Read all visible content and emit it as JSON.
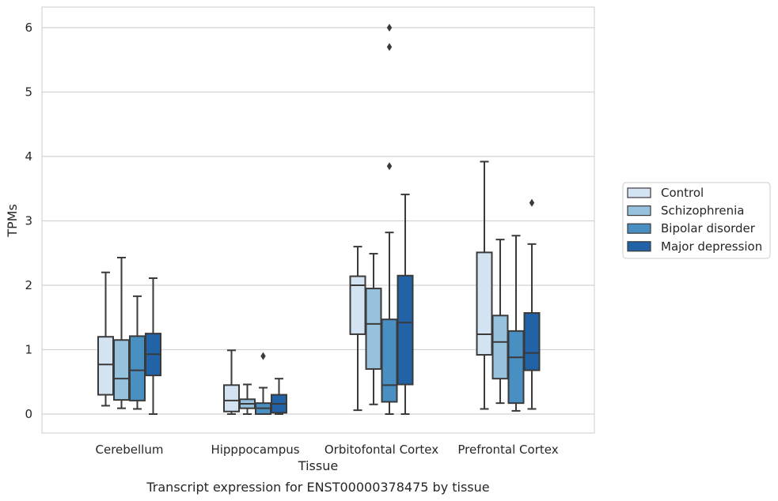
{
  "caption": "Transcript expression for ENST00000378475 by tissue",
  "colors": {
    "Control": "#d4e3f2",
    "Schizophrenia": "#97c2dd",
    "Bipolar disorder": "#4a8fc2",
    "Major depression": "#2163a6",
    "stroke": "#3a3a3a",
    "grid": "#d3d3d3",
    "frame": "#cccccc"
  },
  "chart_data": {
    "type": "box",
    "xlabel": "Tissue",
    "ylabel": "TPMs",
    "ylim": [
      -0.3,
      6.3
    ],
    "yticks": [
      0,
      1,
      2,
      3,
      4,
      5,
      6
    ],
    "ytick_labels": [
      "0",
      "1",
      "2",
      "3",
      "4",
      "5",
      "6"
    ],
    "grid": "horizontal",
    "legend_position": "right",
    "categories": [
      "Cerebellum",
      "Hipppocampus",
      "Orbitofontal Cortex",
      "Prefrontal Cortex"
    ],
    "series": [
      {
        "name": "Control",
        "boxes": [
          {
            "whislo": 0.13,
            "q1": 0.3,
            "med": 0.77,
            "q3": 1.2,
            "whishi": 2.2,
            "fliers": []
          },
          {
            "whislo": 0.0,
            "q1": 0.04,
            "med": 0.21,
            "q3": 0.45,
            "whishi": 0.99,
            "fliers": []
          },
          {
            "whislo": 0.06,
            "q1": 1.24,
            "med": 2.0,
            "q3": 2.14,
            "whishi": 2.6,
            "fliers": []
          },
          {
            "whislo": 0.08,
            "q1": 0.92,
            "med": 1.24,
            "q3": 2.51,
            "whishi": 3.92,
            "fliers": []
          }
        ]
      },
      {
        "name": "Schizophrenia",
        "boxes": [
          {
            "whislo": 0.09,
            "q1": 0.22,
            "med": 0.55,
            "q3": 1.15,
            "whishi": 2.43,
            "fliers": []
          },
          {
            "whislo": 0.0,
            "q1": 0.09,
            "med": 0.16,
            "q3": 0.23,
            "whishi": 0.46,
            "fliers": []
          },
          {
            "whislo": 0.15,
            "q1": 0.7,
            "med": 1.4,
            "q3": 1.95,
            "whishi": 2.49,
            "fliers": []
          },
          {
            "whislo": 0.17,
            "q1": 0.55,
            "med": 1.12,
            "q3": 1.53,
            "whishi": 2.71,
            "fliers": []
          }
        ]
      },
      {
        "name": "Bipolar disorder",
        "boxes": [
          {
            "whislo": 0.08,
            "q1": 0.21,
            "med": 0.68,
            "q3": 1.21,
            "whishi": 1.83,
            "fliers": []
          },
          {
            "whislo": 0.0,
            "q1": 0.0,
            "med": 0.09,
            "q3": 0.17,
            "whishi": 0.41,
            "fliers": [
              0.9
            ]
          },
          {
            "whislo": 0.0,
            "q1": 0.19,
            "med": 0.45,
            "q3": 1.47,
            "whishi": 2.82,
            "fliers": [
              3.85,
              5.7,
              6.0
            ]
          },
          {
            "whislo": 0.05,
            "q1": 0.17,
            "med": 0.88,
            "q3": 1.29,
            "whishi": 2.77,
            "fliers": []
          }
        ]
      },
      {
        "name": "Major depression",
        "boxes": [
          {
            "whislo": 0.0,
            "q1": 0.6,
            "med": 0.93,
            "q3": 1.25,
            "whishi": 2.11,
            "fliers": []
          },
          {
            "whislo": 0.0,
            "q1": 0.02,
            "med": 0.16,
            "q3": 0.3,
            "whishi": 0.55,
            "fliers": []
          },
          {
            "whislo": 0.0,
            "q1": 0.46,
            "med": 1.42,
            "q3": 2.15,
            "whishi": 3.41,
            "fliers": []
          },
          {
            "whislo": 0.08,
            "q1": 0.68,
            "med": 0.95,
            "q3": 1.57,
            "whishi": 2.64,
            "fliers": [
              3.28
            ]
          }
        ]
      }
    ]
  }
}
